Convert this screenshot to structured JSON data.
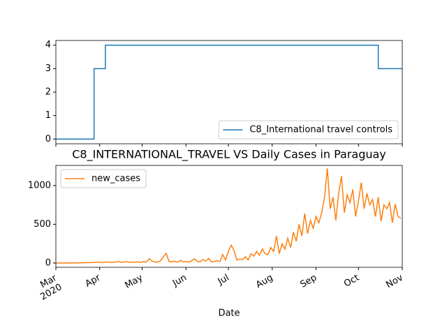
{
  "chart_data": [
    {
      "type": "line",
      "ylim": [
        -0.2,
        4.2
      ],
      "yticks": [
        0,
        1,
        2,
        3,
        4
      ],
      "xlim": [
        0,
        245
      ],
      "legend": "lower right",
      "series": [
        {
          "name": "C8_International travel controls",
          "color": "#1f77b4",
          "x": [
            0,
            27,
            27,
            35,
            35,
            228,
            228,
            245
          ],
          "values": [
            0,
            0,
            3,
            3,
            4,
            4,
            3,
            3
          ]
        }
      ]
    },
    {
      "type": "line",
      "title": "C8_INTERNATIONAL_TRAVEL VS Daily Cases in Paraguay",
      "xlabel": "Date",
      "ylim": [
        -55,
        1260
      ],
      "yticks": [
        0,
        500,
        1000
      ],
      "xlim": [
        0,
        245
      ],
      "xticks": [
        {
          "value": 0,
          "label": "Mar\n2020"
        },
        {
          "value": 31,
          "label": "Apr"
        },
        {
          "value": 61,
          "label": "May"
        },
        {
          "value": 92,
          "label": "Jun"
        },
        {
          "value": 122,
          "label": "Jul"
        },
        {
          "value": 153,
          "label": "Aug"
        },
        {
          "value": 184,
          "label": "Sep"
        },
        {
          "value": 214,
          "label": "Oct"
        },
        {
          "value": 245,
          "label": "Nov"
        }
      ],
      "legend": "upper left",
      "series": [
        {
          "name": "new_cases",
          "color": "#ff7f0e",
          "x": [
            0,
            2,
            4,
            6,
            8,
            10,
            12,
            14,
            16,
            18,
            20,
            22,
            24,
            26,
            28,
            30,
            32,
            34,
            36,
            38,
            40,
            42,
            44,
            46,
            48,
            50,
            52,
            54,
            56,
            58,
            60,
            62,
            64,
            66,
            68,
            70,
            72,
            74,
            76,
            78,
            80,
            82,
            84,
            86,
            88,
            90,
            92,
            94,
            96,
            98,
            100,
            102,
            104,
            106,
            108,
            110,
            112,
            114,
            116,
            118,
            120,
            122,
            124,
            126,
            128,
            130,
            132,
            134,
            136,
            138,
            140,
            142,
            144,
            146,
            148,
            150,
            152,
            154,
            156,
            158,
            160,
            162,
            164,
            166,
            168,
            170,
            172,
            174,
            176,
            178,
            180,
            182,
            184,
            186,
            188,
            190,
            192,
            194,
            196,
            198,
            200,
            202,
            204,
            206,
            208,
            210,
            212,
            214,
            216,
            218,
            220,
            222,
            224,
            226,
            228,
            230,
            232,
            234,
            236,
            238,
            240,
            242,
            244
          ],
          "values": [
            0,
            0,
            0,
            1,
            2,
            0,
            1,
            2,
            3,
            2,
            4,
            6,
            5,
            8,
            10,
            12,
            6,
            9,
            15,
            8,
            10,
            12,
            20,
            10,
            14,
            18,
            8,
            12,
            10,
            15,
            8,
            20,
            12,
            55,
            25,
            15,
            10,
            30,
            80,
            125,
            20,
            15,
            25,
            10,
            35,
            15,
            20,
            10,
            30,
            55,
            20,
            15,
            45,
            25,
            60,
            15,
            20,
            30,
            20,
            110,
            40,
            150,
            230,
            160,
            40,
            50,
            45,
            80,
            40,
            120,
            90,
            150,
            100,
            180,
            120,
            110,
            200,
            150,
            350,
            120,
            250,
            180,
            320,
            200,
            400,
            280,
            500,
            350,
            640,
            380,
            550,
            450,
            600,
            520,
            650,
            850,
            1220,
            700,
            850,
            550,
            900,
            1120,
            650,
            880,
            780,
            950,
            600,
            800,
            1040,
            700,
            900,
            750,
            820,
            600,
            850,
            540,
            750,
            700,
            780,
            520,
            760,
            600,
            580
          ]
        }
      ]
    }
  ]
}
